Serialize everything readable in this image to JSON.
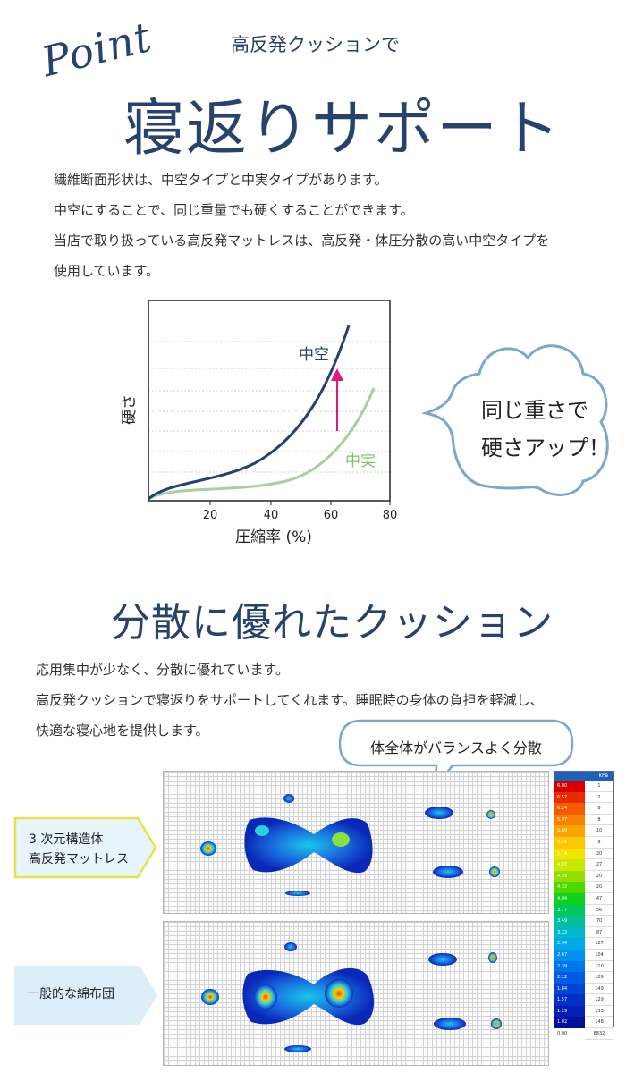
{
  "header": {
    "point_script": "Point",
    "subtitle": "高反発クッションで",
    "title": "寝返りサポート"
  },
  "intro": {
    "lines": [
      "繊維断面形状は、中空タイプと中実タイプがあります。",
      "中空にすることで、同じ重量でも硬くすることができます。",
      "当店で取り扱っている高反発マットレスは、高反発・体圧分散の高い中空タイプを",
      "使用しています。"
    ]
  },
  "graph": {
    "ylabel": "硬さ",
    "xlabel": "圧縮率 (%)",
    "xticks": [
      "20",
      "40",
      "60",
      "80"
    ],
    "series_hollow": "中空",
    "series_solid": "中実",
    "color_hollow": "#27426d",
    "color_solid": "#a9cf9c",
    "arrow_color": "#e3197a"
  },
  "callout": {
    "line1": "同じ重さで",
    "line2": "硬さアップ！"
  },
  "section2": {
    "title": "分散に優れたクッション",
    "lines": [
      "応用集中が少なく、分散に優れています。",
      "高反発クッションで寝返りをサポートしてくれます。睡眠時の身体の負担を軽減し、",
      "快適な寝心地を提供します。"
    ],
    "bubble": "体全体がバランスよく分散"
  },
  "pressure_maps": {
    "label_top_line1": "3 次元構造体",
    "label_top_line2": "高反発マットレス",
    "label_bottom": "一般的な綿布団",
    "label_top_border": "#e6e34a",
    "label_top_fill": "#e7f4fb",
    "label_bottom_fill": "#dceefa"
  },
  "legend": {
    "unit": "kPa",
    "rows": [
      {
        "value": "6.80",
        "count": "1",
        "color": "#d40000"
      },
      {
        "value": "6.52",
        "count": "2",
        "color": "#ec2a00"
      },
      {
        "value": "6.24",
        "count": "8",
        "color": "#f45a00"
      },
      {
        "value": "5.97",
        "count": "8",
        "color": "#f88100"
      },
      {
        "value": "5.69",
        "count": "10",
        "color": "#faa400"
      },
      {
        "value": "5.42",
        "count": "9",
        "color": "#fbc800"
      },
      {
        "value": "5.14",
        "count": "20",
        "color": "#f2e400"
      },
      {
        "value": "4.87",
        "count": "27",
        "color": "#c8e800"
      },
      {
        "value": "4.59",
        "count": "20",
        "color": "#92e000"
      },
      {
        "value": "4.32",
        "count": "20",
        "color": "#4fd800"
      },
      {
        "value": "4.04",
        "count": "47",
        "color": "#10d020"
      },
      {
        "value": "3.77",
        "count": "56",
        "color": "#00c860"
      },
      {
        "value": "3.49",
        "count": "70",
        "color": "#00c09a"
      },
      {
        "value": "3.22",
        "count": "87",
        "color": "#00b8cc"
      },
      {
        "value": "2.94",
        "count": "127",
        "color": "#00a8e8"
      },
      {
        "value": "2.67",
        "count": "104",
        "color": "#0090f0"
      },
      {
        "value": "2.39",
        "count": "110",
        "color": "#0076ec"
      },
      {
        "value": "2.12",
        "count": "109",
        "color": "#005ce4"
      },
      {
        "value": "1.84",
        "count": "149",
        "color": "#0044d8"
      },
      {
        "value": "1.57",
        "count": "129",
        "color": "#0030c8"
      },
      {
        "value": "1.29",
        "count": "133",
        "color": "#0020b4"
      },
      {
        "value": "1.02",
        "count": "148",
        "color": "#00109c"
      },
      {
        "value": "0.00",
        "count": "8832",
        "color": "#ffffff"
      }
    ]
  }
}
